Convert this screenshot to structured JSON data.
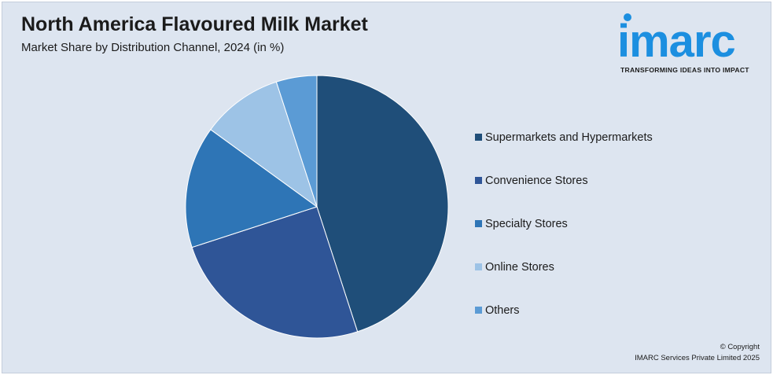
{
  "header": {
    "title": "North America Flavoured Milk Market",
    "subtitle": "Market Share by Distribution Channel, 2024 (in %)"
  },
  "logo": {
    "wordmark": "imarc",
    "tagline": "TRANSFORMING IDEAS INTO IMPACT",
    "color": "#1c8fe0"
  },
  "chart_data": {
    "type": "pie",
    "title": "North America Flavoured Milk Market",
    "subtitle": "Market Share by Distribution Channel, 2024 (in %)",
    "unit": "%",
    "legend_position": "right",
    "categories": [
      "Supermarkets and Hypermarkets",
      "Convenience Stores",
      "Specialty Stores",
      "Online Stores",
      "Others"
    ],
    "values": [
      45,
      25,
      15,
      10,
      5
    ],
    "colors": [
      "#1f4e79",
      "#2f5597",
      "#2e75b6",
      "#9dc3e6",
      "#5b9bd5"
    ]
  },
  "footer": {
    "copyright_line1": "© Copyright",
    "copyright_line2": "IMARC Services Private Limited 2025"
  }
}
